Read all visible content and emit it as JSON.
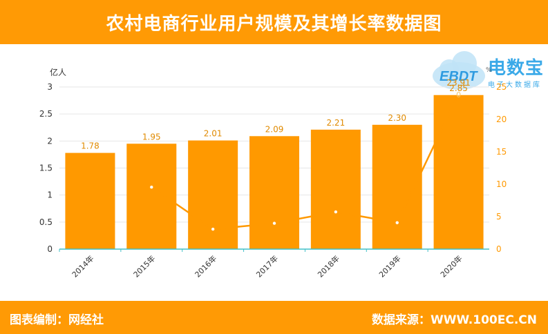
{
  "header": {
    "title": "农村电商行业用户规模及其增长率数据图"
  },
  "footer": {
    "editor_label": "图表编制：",
    "editor_value": "网经社",
    "source_label": "数据来源：",
    "source_value": "WWW.100EC.CN"
  },
  "logo": {
    "main": "电数宝",
    "sub": "电子大数据库",
    "emblem": "EBDT"
  },
  "colors": {
    "brand_orange": "#ff9a05",
    "bar": "#ff9900",
    "axis": "#40c0c8",
    "logo_blue": "#3aa9e8"
  },
  "chart_data": {
    "type": "bar",
    "categories": [
      "2014年",
      "2015年",
      "2016年",
      "2017年",
      "2018年",
      "2019年",
      "2020年"
    ],
    "series": [
      {
        "type": "bar",
        "axis": "left",
        "values": [
          1.78,
          1.95,
          2.01,
          2.09,
          2.21,
          2.3,
          2.85
        ],
        "labels": [
          "1.78",
          "1.95",
          "2.01",
          "2.09",
          "2.21",
          "2.30",
          "2.85"
        ]
      },
      {
        "type": "line",
        "axis": "right",
        "values": [
          null,
          9.55,
          3.08,
          3.98,
          5.74,
          4.07,
          23.91
        ]
      }
    ],
    "y_left": {
      "unit": "亿人",
      "range": [
        0,
        3
      ],
      "ticks": [
        "0",
        "0.5",
        "1",
        "1.5",
        "2",
        "2.5",
        "3"
      ]
    },
    "y_right": {
      "unit": "%",
      "range": [
        0,
        25
      ],
      "ticks": [
        "0",
        "5",
        "10",
        "15",
        "20",
        "25"
      ]
    },
    "overlap_labels": [
      "23.91",
      "0"
    ],
    "grid": true,
    "legend": "none"
  }
}
